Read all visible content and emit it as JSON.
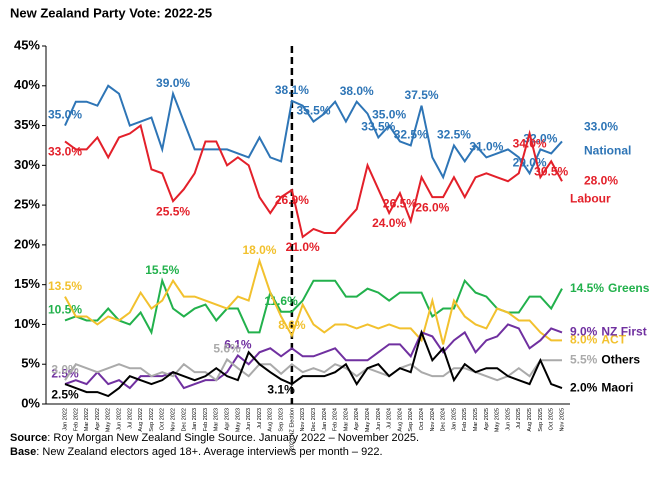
{
  "chart_data": {
    "type": "line",
    "title": "New Zealand Party Vote: 2022-25",
    "source_label": "Source",
    "source_text": ": Roy Morgan New Zealand Single Source. January 2022 – November 2025.",
    "base_label": "Base",
    "base_text": ": New Zealand electors aged 18+. Average interviews per month – 922.",
    "vline_category": "2023 NZ Election",
    "ylim": [
      0,
      45
    ],
    "yticks": [
      {
        "value": 0,
        "label": "0%"
      },
      {
        "value": 5,
        "label": "5%"
      },
      {
        "value": 10,
        "label": "10%"
      },
      {
        "value": 15,
        "label": "15%"
      },
      {
        "value": 20,
        "label": "20%"
      },
      {
        "value": 25,
        "label": "25%"
      },
      {
        "value": 30,
        "label": "30%"
      },
      {
        "value": 35,
        "label": "35%"
      },
      {
        "value": 40,
        "label": "40%"
      },
      {
        "value": 45,
        "label": "45%"
      }
    ],
    "categories": [
      "Jan 2022",
      "Feb 2022",
      "Mar 2022",
      "Apr 2022",
      "May 2022",
      "Jun 2022",
      "Jul 2022",
      "Aug 2022",
      "Sep 2022",
      "Oct 2022",
      "Nov 2022",
      "Dec 2022",
      "Jan 2023",
      "Feb 2023",
      "Mar 2023",
      "Apr 2023",
      "May 2023",
      "Jun 2023",
      "Jul 2023",
      "Aug 2023",
      "Sep 2023",
      "2023 NZ Election",
      "Nov 2023",
      "Dec 2023",
      "Jan 2024",
      "Feb 2024",
      "Mar 2024",
      "Apr 2024",
      "May 2024",
      "Jun 2024",
      "Jul 2024",
      "Aug 2024",
      "Sep 2024",
      "Oct 2024",
      "Nov 2024",
      "Dec 2024",
      "Jan 2025",
      "Feb 2025",
      "Mar 2025",
      "Apr 2025",
      "May 2025",
      "Jun 2025",
      "Jul 2025",
      "Aug 2025",
      "Sep 2025",
      "Oct 2025",
      "Nov 2025"
    ],
    "series": [
      {
        "name": "National",
        "color": "#2e75b6",
        "values": [
          35,
          38,
          38,
          37.5,
          40,
          39,
          35,
          35.5,
          36,
          32,
          39,
          35.5,
          32,
          32,
          32,
          32,
          31.5,
          31,
          33.5,
          31,
          30.5,
          38.1,
          37.5,
          35.5,
          36.5,
          38,
          35.5,
          38,
          36.5,
          33.5,
          35,
          33,
          32.5,
          37.5,
          31,
          28.5,
          32.5,
          30.5,
          32.5,
          31,
          31.5,
          32,
          31,
          29,
          32,
          31.5,
          33
        ],
        "value_labels": [
          "35.0%",
          null,
          null,
          null,
          null,
          null,
          null,
          null,
          null,
          null,
          "39.0%",
          null,
          null,
          null,
          null,
          null,
          null,
          null,
          null,
          null,
          null,
          "38.1%",
          null,
          "35.5%",
          null,
          null,
          null,
          "38.0%",
          null,
          "33.5%",
          "35.0%",
          null,
          "32.5%",
          "37.5%",
          null,
          null,
          "32.5%",
          null,
          null,
          "31.0%",
          null,
          null,
          null,
          "29.0%",
          "32.0%",
          null,
          "33.0%"
        ]
      },
      {
        "name": "Labour",
        "color": "#e3202a",
        "values": [
          33,
          32,
          32,
          33.5,
          31,
          33.5,
          34,
          35,
          29.5,
          29,
          25.5,
          27,
          29,
          33,
          33,
          30,
          31,
          30,
          26,
          24,
          26,
          26.9,
          21,
          22,
          21.5,
          21.5,
          23,
          24.5,
          30,
          27,
          24,
          26.5,
          23,
          28.5,
          26,
          26,
          28.5,
          26,
          28.5,
          29,
          28.5,
          28,
          29,
          34,
          28.5,
          30.5,
          28
        ],
        "value_labels": [
          "33.0%",
          null,
          null,
          null,
          null,
          null,
          null,
          null,
          null,
          null,
          "25.5%",
          null,
          null,
          null,
          null,
          null,
          null,
          null,
          null,
          null,
          null,
          "26.9%",
          "21.0%",
          null,
          null,
          null,
          null,
          null,
          null,
          null,
          "24.0%",
          "26.5%",
          null,
          null,
          "26.0%",
          null,
          null,
          null,
          null,
          null,
          null,
          null,
          null,
          "34.0%",
          null,
          "30.5%",
          "28.0%"
        ]
      },
      {
        "name": "Greens",
        "color": "#22b14c",
        "values": [
          10.5,
          11,
          10.5,
          10.5,
          12,
          10.5,
          10,
          11.5,
          9,
          15.5,
          12,
          11,
          12,
          12.5,
          10.5,
          12,
          12,
          9,
          9,
          14,
          11.6,
          11.6,
          13,
          15.5,
          15.5,
          15.5,
          13.5,
          13.5,
          14.5,
          14,
          13,
          14,
          14,
          14,
          11,
          12,
          12,
          15.5,
          14,
          13.5,
          12,
          11.5,
          11.5,
          13.5,
          13.5,
          12,
          14.5
        ],
        "value_labels": [
          "10.5%",
          null,
          null,
          null,
          null,
          null,
          null,
          null,
          null,
          "15.5%",
          null,
          null,
          null,
          null,
          null,
          null,
          null,
          null,
          null,
          null,
          "11.6%",
          null,
          null,
          null,
          null,
          null,
          null,
          null,
          null,
          null,
          null,
          null,
          null,
          null,
          null,
          null,
          null,
          null,
          null,
          null,
          null,
          null,
          null,
          null,
          null,
          null,
          "14.5%"
        ]
      },
      {
        "name": "ACT",
        "color": "#f2c12e",
        "values": [
          13.5,
          11,
          11,
          10,
          11,
          10.5,
          11.5,
          14,
          12,
          13,
          15.5,
          13.5,
          13.5,
          13,
          12.5,
          12,
          13.5,
          13,
          18,
          14,
          11,
          8.6,
          12.5,
          10,
          9,
          10,
          10,
          9.5,
          10,
          9.5,
          10,
          9.5,
          9.5,
          8,
          13,
          7.5,
          13,
          11,
          10,
          9.5,
          12,
          11.5,
          10.5,
          10.5,
          9,
          8,
          8
        ],
        "value_labels": [
          "13.5%",
          null,
          null,
          null,
          null,
          null,
          null,
          null,
          null,
          null,
          null,
          null,
          null,
          null,
          null,
          null,
          null,
          null,
          "18.0%",
          null,
          null,
          "8.6%",
          null,
          null,
          null,
          null,
          null,
          null,
          null,
          null,
          null,
          null,
          null,
          null,
          null,
          null,
          null,
          null,
          null,
          null,
          null,
          null,
          null,
          null,
          null,
          null,
          "8.0%"
        ]
      },
      {
        "name": "NZ First",
        "color": "#7030a0",
        "values": [
          2.5,
          3,
          2.5,
          4,
          2.5,
          3,
          2,
          3.5,
          3.5,
          3.5,
          4,
          2,
          2.5,
          3,
          3,
          4,
          6.1,
          5,
          6.5,
          7,
          6,
          7,
          6,
          6,
          6.5,
          7,
          5.5,
          5.5,
          5.5,
          6.5,
          7.5,
          7.5,
          6,
          9,
          8.5,
          6.5,
          8,
          9,
          6.5,
          8,
          8.5,
          10,
          9.5,
          7,
          8,
          9.5,
          9
        ],
        "value_labels": [
          "2.5%",
          null,
          null,
          null,
          null,
          null,
          null,
          null,
          null,
          null,
          null,
          null,
          null,
          null,
          null,
          null,
          "6.1%",
          null,
          null,
          null,
          null,
          null,
          null,
          null,
          null,
          null,
          null,
          null,
          null,
          null,
          null,
          null,
          null,
          null,
          null,
          null,
          null,
          null,
          null,
          null,
          null,
          null,
          null,
          null,
          null,
          null,
          "9.0%"
        ]
      },
      {
        "name": "Others",
        "color": "#aaaaaa",
        "values": [
          3,
          5,
          4.5,
          4,
          4.5,
          5,
          4.5,
          4.5,
          3.5,
          4,
          3.5,
          5,
          4,
          4,
          3,
          5.6,
          4.5,
          3.5,
          5,
          5,
          3.8,
          5,
          4,
          4.5,
          4,
          5,
          4.5,
          3.5,
          4.5,
          4,
          3.5,
          4.5,
          5,
          4,
          3.5,
          3.5,
          4.5,
          4.5,
          4,
          3.5,
          3,
          3.5,
          4.5,
          3.5,
          5.5,
          5.5,
          5.5
        ],
        "value_labels": [
          "3.0%",
          null,
          null,
          null,
          null,
          null,
          null,
          null,
          null,
          null,
          null,
          null,
          null,
          null,
          null,
          "5.6%",
          null,
          null,
          null,
          null,
          null,
          null,
          null,
          null,
          null,
          null,
          null,
          null,
          null,
          null,
          null,
          null,
          null,
          null,
          null,
          null,
          null,
          null,
          null,
          null,
          null,
          null,
          null,
          null,
          null,
          null,
          "5.5%"
        ]
      },
      {
        "name": "Maori",
        "color": "#000000",
        "values": [
          2.5,
          2,
          1.5,
          1.5,
          1,
          2,
          3.5,
          3,
          2.5,
          3,
          4,
          3.5,
          3,
          3.5,
          4.5,
          3.5,
          3,
          6.5,
          5,
          4,
          3.1,
          2.5,
          3.5,
          3.5,
          3.5,
          4,
          5,
          2.5,
          4.5,
          5,
          3.5,
          4.5,
          4,
          9,
          5.5,
          7,
          3,
          5,
          4,
          4.5,
          4.5,
          3.5,
          3,
          2.5,
          5.5,
          2.5,
          2
        ],
        "value_labels": [
          "2.5%",
          null,
          null,
          null,
          null,
          null,
          null,
          null,
          null,
          null,
          null,
          null,
          null,
          null,
          null,
          null,
          null,
          null,
          null,
          null,
          "3.1%",
          null,
          null,
          null,
          null,
          null,
          null,
          null,
          null,
          null,
          null,
          null,
          null,
          null,
          null,
          null,
          null,
          null,
          null,
          null,
          null,
          null,
          null,
          null,
          null,
          null,
          "2.0%"
        ]
      }
    ]
  }
}
